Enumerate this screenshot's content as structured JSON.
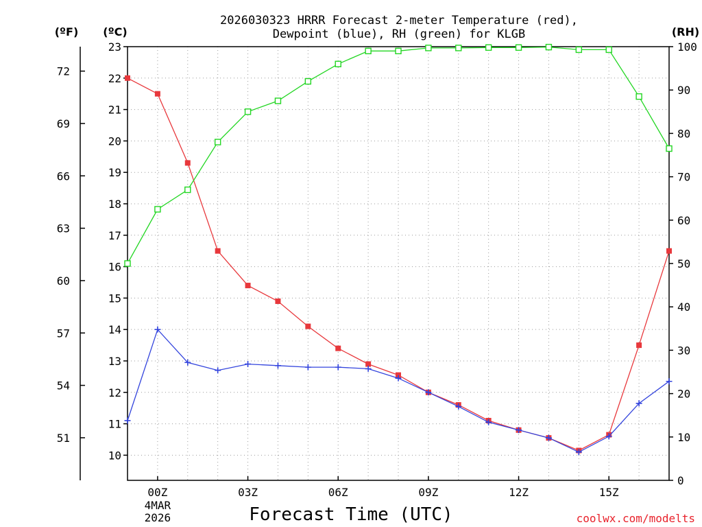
{
  "title": {
    "line1": "2026030323 HRRR Forecast 2-meter Temperature (red),",
    "line2": "Dewpoint (blue), RH (green) for KLGB"
  },
  "units": {
    "fahrenheit": "(ºF)",
    "celsius": "(ºC)",
    "rh": "(RH)"
  },
  "xlabel": "Forecast Time (UTC)",
  "credit": "coolwx.com/modelts",
  "colors": {
    "temperature": "#e8383c",
    "dewpoint": "#3344dd",
    "rh": "#22d622",
    "axis": "#000000",
    "credit": "#e8222b"
  },
  "chart_data": {
    "type": "line",
    "title": "2026030323 HRRR Forecast 2-meter Temperature (red), Dewpoint (blue), RH (green) for KLGB",
    "xlabel": "Forecast Time (UTC)",
    "x": [
      -1,
      0,
      1,
      2,
      3,
      4,
      5,
      6,
      7,
      8,
      9,
      10,
      11,
      12,
      13,
      14,
      15,
      16,
      17
    ],
    "x_note": "hours from 00Z 4 MAR 2026",
    "xlim": [
      -1,
      17
    ],
    "xticks": [
      {
        "x": 0,
        "label": "00Z",
        "sub1": "4MAR",
        "sub2": "2026"
      },
      {
        "x": 3,
        "label": "03Z",
        "sub1": "",
        "sub2": ""
      },
      {
        "x": 6,
        "label": "06Z",
        "sub1": "",
        "sub2": ""
      },
      {
        "x": 9,
        "label": "09Z",
        "sub1": "",
        "sub2": ""
      },
      {
        "x": 12,
        "label": "12Z",
        "sub1": "",
        "sub2": ""
      },
      {
        "x": 15,
        "label": "15Z",
        "sub1": "",
        "sub2": ""
      }
    ],
    "ylim_c": [
      9.2,
      23.0
    ],
    "yticks_c": [
      "10",
      "11",
      "12",
      "13",
      "14",
      "15",
      "16",
      "17",
      "18",
      "19",
      "20",
      "21",
      "22",
      "23"
    ],
    "yticks_f": [
      "51",
      "54",
      "57",
      "60",
      "63",
      "66",
      "69",
      "72"
    ],
    "ylim_rh": [
      0,
      100
    ],
    "yticks_rh": [
      "0",
      "10",
      "20",
      "30",
      "40",
      "50",
      "60",
      "70",
      "80",
      "90",
      "100"
    ],
    "series": [
      {
        "name": "Temperature",
        "axis": "celsius",
        "marker": "filled-square",
        "color": "#e8383c",
        "values": [
          22.0,
          21.5,
          19.3,
          16.5,
          15.4,
          14.9,
          14.1,
          13.4,
          12.9,
          12.55,
          12.0,
          11.6,
          11.1,
          10.8,
          10.55,
          10.15,
          10.65,
          13.5,
          16.5
        ]
      },
      {
        "name": "Dewpoint",
        "axis": "celsius",
        "marker": "plus",
        "color": "#3344dd",
        "values": [
          11.1,
          14.0,
          12.95,
          12.7,
          12.9,
          12.85,
          12.8,
          12.8,
          12.75,
          12.45,
          12.0,
          11.55,
          11.05,
          10.8,
          10.55,
          10.1,
          10.6,
          11.65,
          12.35
        ]
      },
      {
        "name": "RH",
        "axis": "rh",
        "marker": "open-square",
        "color": "#22d622",
        "values": [
          50,
          62.5,
          67,
          78,
          85,
          87.5,
          92,
          96,
          99,
          99,
          99.7,
          99.7,
          99.8,
          99.8,
          99.9,
          99.3,
          99.3,
          88.5,
          76.5
        ]
      }
    ]
  }
}
